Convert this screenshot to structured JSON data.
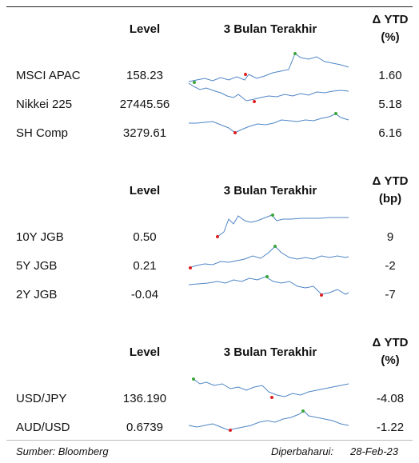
{
  "sections": [
    {
      "header": {
        "level": "Level",
        "chart": "3 Bulan Terakhir",
        "ytd_title": "Δ YTD",
        "ytd_unit": "(%)"
      },
      "rows": [
        {
          "name": "MSCI APAC",
          "level": "158.23",
          "ytd": "1.60"
        },
        {
          "name": "Nikkei 225",
          "level": "27445.56",
          "ytd": "5.18"
        },
        {
          "name": "SH Comp",
          "level": "3279.61",
          "ytd": "6.16"
        }
      ]
    },
    {
      "header": {
        "level": "Level",
        "chart": "3 Bulan Terakhir",
        "ytd_title": "Δ YTD",
        "ytd_unit": "(bp)"
      },
      "rows": [
        {
          "name": "10Y JGB",
          "level": "0.50",
          "ytd": "9"
        },
        {
          "name": "5Y JGB",
          "level": "0.21",
          "ytd": "-2"
        },
        {
          "name": "2Y JGB",
          "level": "-0.04",
          "ytd": "-7"
        }
      ]
    },
    {
      "header": {
        "level": "Level",
        "chart": "3 Bulan Terakhir",
        "ytd_title": "Δ YTD",
        "ytd_unit": "(%)"
      },
      "rows": [
        {
          "name": "USD/JPY",
          "level": "136.190",
          "ytd": "-4.08"
        },
        {
          "name": "AUD/USD",
          "level": "0.6739",
          "ytd": "-1.22"
        }
      ]
    }
  ],
  "footer": {
    "source": "Sumber: Bloomberg",
    "updated_label": "Diperbaharui:",
    "updated_date": "28-Feb-23"
  }
}
